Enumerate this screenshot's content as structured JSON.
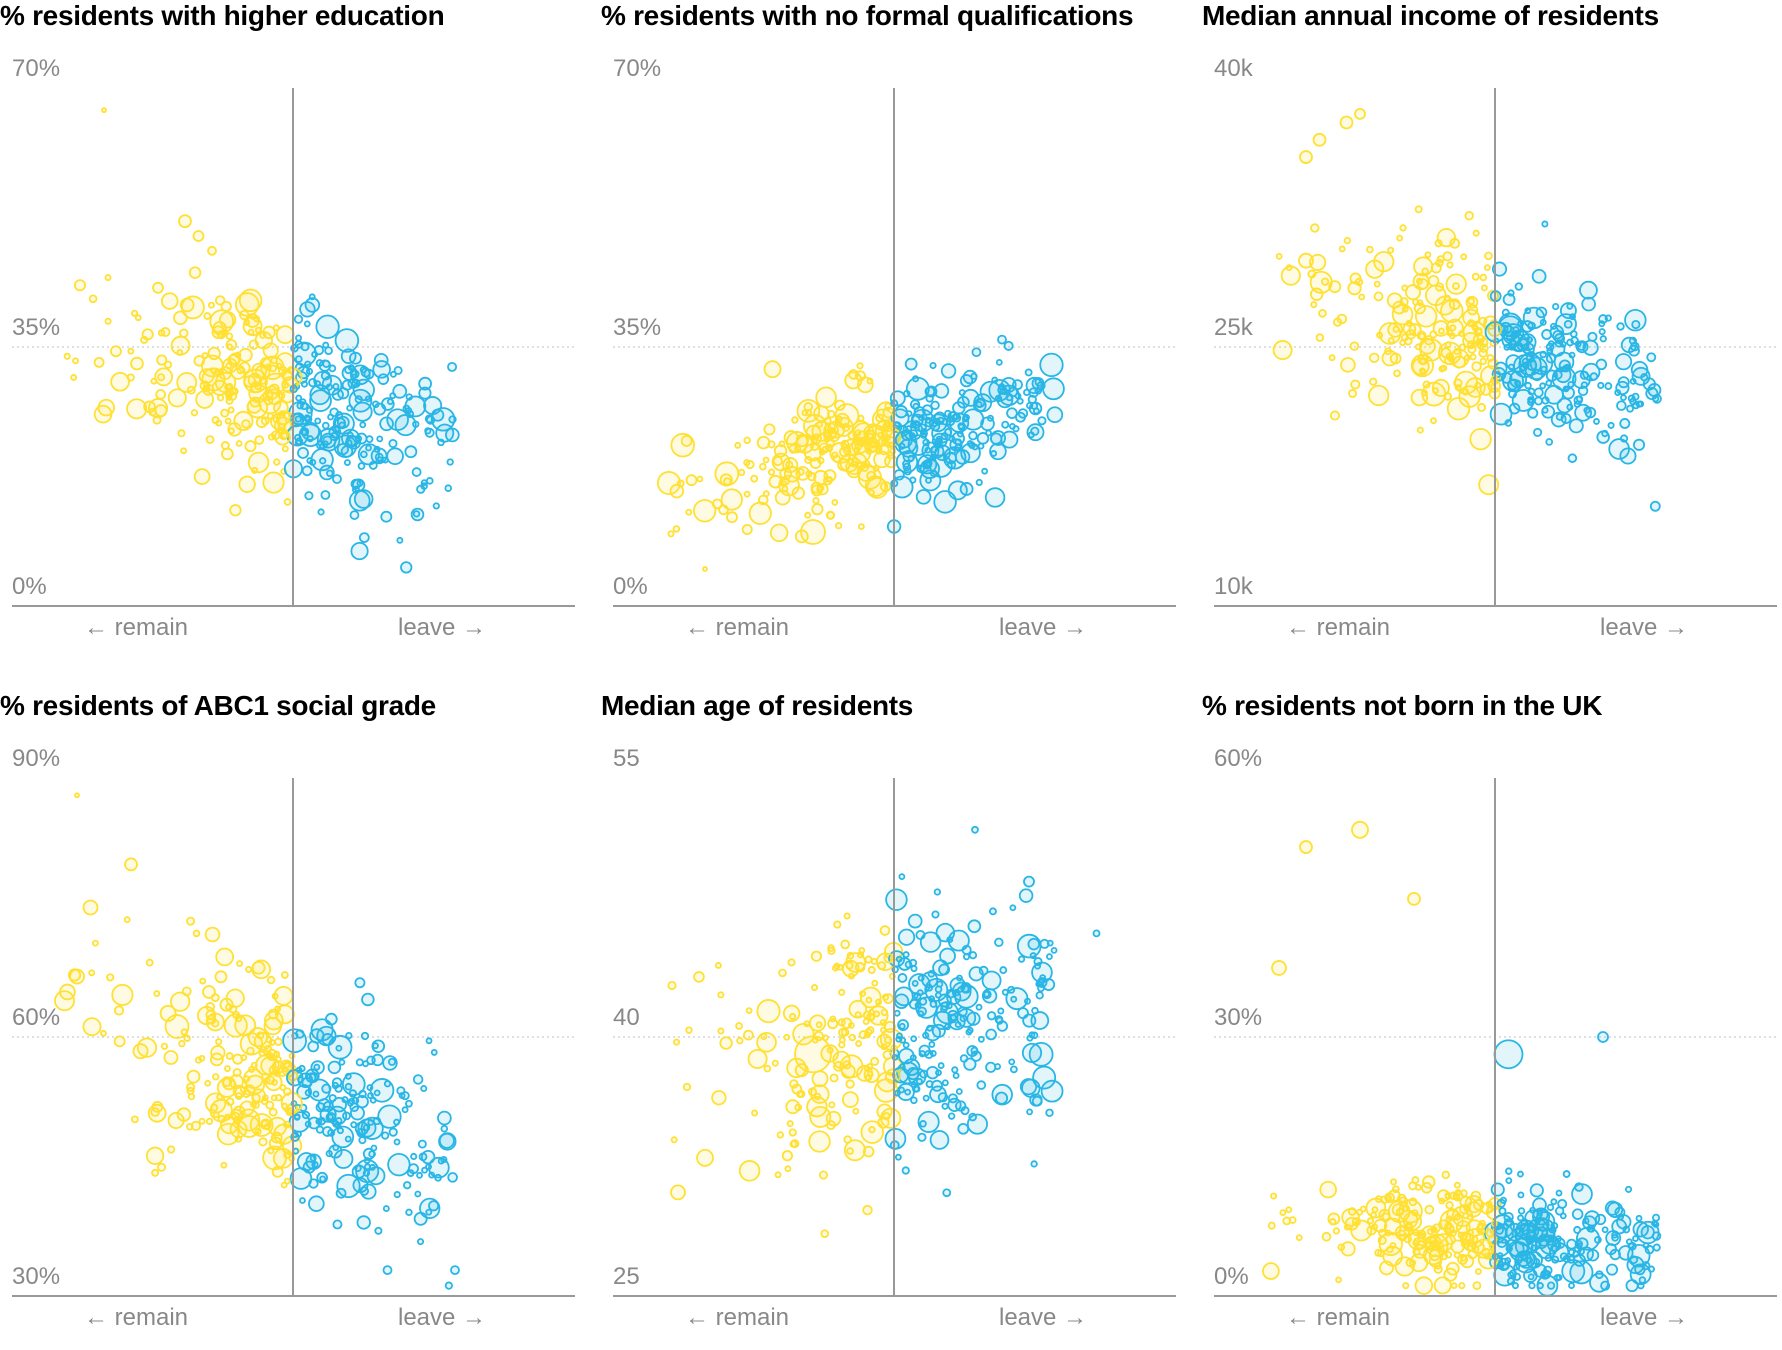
{
  "colors": {
    "remain": "#ffe033",
    "leave": "#29b6e6",
    "axis": "#999999",
    "gridline": "#cccccc"
  },
  "chart_data": [
    {
      "type": "scatter",
      "title": "% residents with higher education",
      "yticks": [
        "70%",
        "35%",
        "0%"
      ],
      "ylim": [
        0,
        70
      ],
      "remain_label": "← remain",
      "leave_label": "leave →",
      "seed": 11,
      "points": 380,
      "x_split": 0,
      "trend": {
        "y_at_remain": 42,
        "y_at_leave": 14,
        "spread": 6
      },
      "outliers": [
        [
          -0.7,
          67,
          2
        ],
        [
          -0.4,
          52,
          6
        ],
        [
          -0.35,
          50,
          5
        ],
        [
          -0.3,
          48,
          4
        ],
        [
          -0.5,
          43,
          5
        ],
        [
          0.12,
          15,
          4
        ]
      ]
    },
    {
      "type": "scatter",
      "title": "% residents with no formal qualifications",
      "yticks": [
        "70%",
        "35%",
        "0%"
      ],
      "ylim": [
        0,
        70
      ],
      "remain_label": "← remain",
      "leave_label": "leave →",
      "seed": 23,
      "points": 380,
      "x_split": 0,
      "trend": {
        "y_at_remain": 14,
        "y_at_leave": 31,
        "spread": 4
      },
      "outliers": [
        [
          -0.7,
          5,
          2
        ],
        [
          -0.75,
          17,
          5
        ],
        [
          -0.6,
          12,
          5
        ],
        [
          -0.3,
          10,
          12
        ],
        [
          -0.45,
          32,
          8
        ],
        [
          0.4,
          36,
          4
        ]
      ]
    },
    {
      "type": "scatter",
      "title": "Median annual income of residents",
      "yticks": [
        "40k",
        "25k",
        "10k"
      ],
      "ylim": [
        10,
        40
      ],
      "remain_label": "← remain",
      "leave_label": "leave →",
      "seed": 37,
      "points": 380,
      "x_split": 0,
      "trend": {
        "y_at_remain": 29,
        "y_at_leave": 21,
        "spread": 2.6
      },
      "outliers": [
        [
          -0.65,
          37,
          6
        ],
        [
          -0.55,
          38,
          6
        ],
        [
          -0.5,
          38.5,
          5
        ],
        [
          -0.7,
          36,
          6
        ],
        [
          -0.7,
          30,
          7
        ],
        [
          0.6,
          22,
          4
        ]
      ]
    },
    {
      "type": "scatter",
      "title": "% residents of ABC1 social grade",
      "yticks": [
        "90%",
        "60%",
        "30%"
      ],
      "ylim": [
        30,
        90
      ],
      "remain_label": "← remain",
      "leave_label": "leave →",
      "seed": 51,
      "points": 380,
      "x_split": 0,
      "trend": {
        "y_at_remain": 68,
        "y_at_leave": 41,
        "spread": 6
      },
      "outliers": [
        [
          -0.8,
          88,
          2
        ],
        [
          -0.6,
          80,
          6
        ],
        [
          -0.75,
          75,
          7
        ],
        [
          -0.8,
          67,
          7
        ],
        [
          0.35,
          33,
          4
        ],
        [
          0.6,
          33,
          4
        ]
      ]
    },
    {
      "type": "scatter",
      "title": "Median age of residents",
      "yticks": [
        "55",
        "40",
        "25"
      ],
      "ylim": [
        25,
        55
      ],
      "remain_label": "← remain",
      "leave_label": "leave →",
      "seed": 67,
      "points": 380,
      "x_split": 0,
      "trend": {
        "y_at_remain": 37,
        "y_at_leave": 43,
        "spread": 3.4
      },
      "outliers": [
        [
          -0.7,
          33,
          8
        ],
        [
          -0.8,
          31,
          7
        ],
        [
          -0.3,
          39,
          18
        ],
        [
          0.3,
          52,
          3
        ],
        [
          0.5,
          49,
          5
        ],
        [
          0.75,
          46,
          3
        ]
      ]
    },
    {
      "type": "scatter",
      "title": "% residents not born in the UK",
      "yticks": [
        "60%",
        "30%",
        "0%"
      ],
      "ylim": [
        0,
        60
      ],
      "remain_label": "← remain",
      "leave_label": "leave →",
      "seed": 83,
      "points": 380,
      "x_split": 0,
      "trend": {
        "y_at_remain": 9,
        "y_at_leave": 5,
        "spread": 3.2
      },
      "outliers": [
        [
          -0.7,
          52,
          6
        ],
        [
          -0.5,
          54,
          8
        ],
        [
          -0.8,
          38,
          7
        ],
        [
          -0.3,
          46,
          6
        ],
        [
          0.05,
          28,
          14
        ],
        [
          0.4,
          30,
          5
        ]
      ]
    }
  ]
}
